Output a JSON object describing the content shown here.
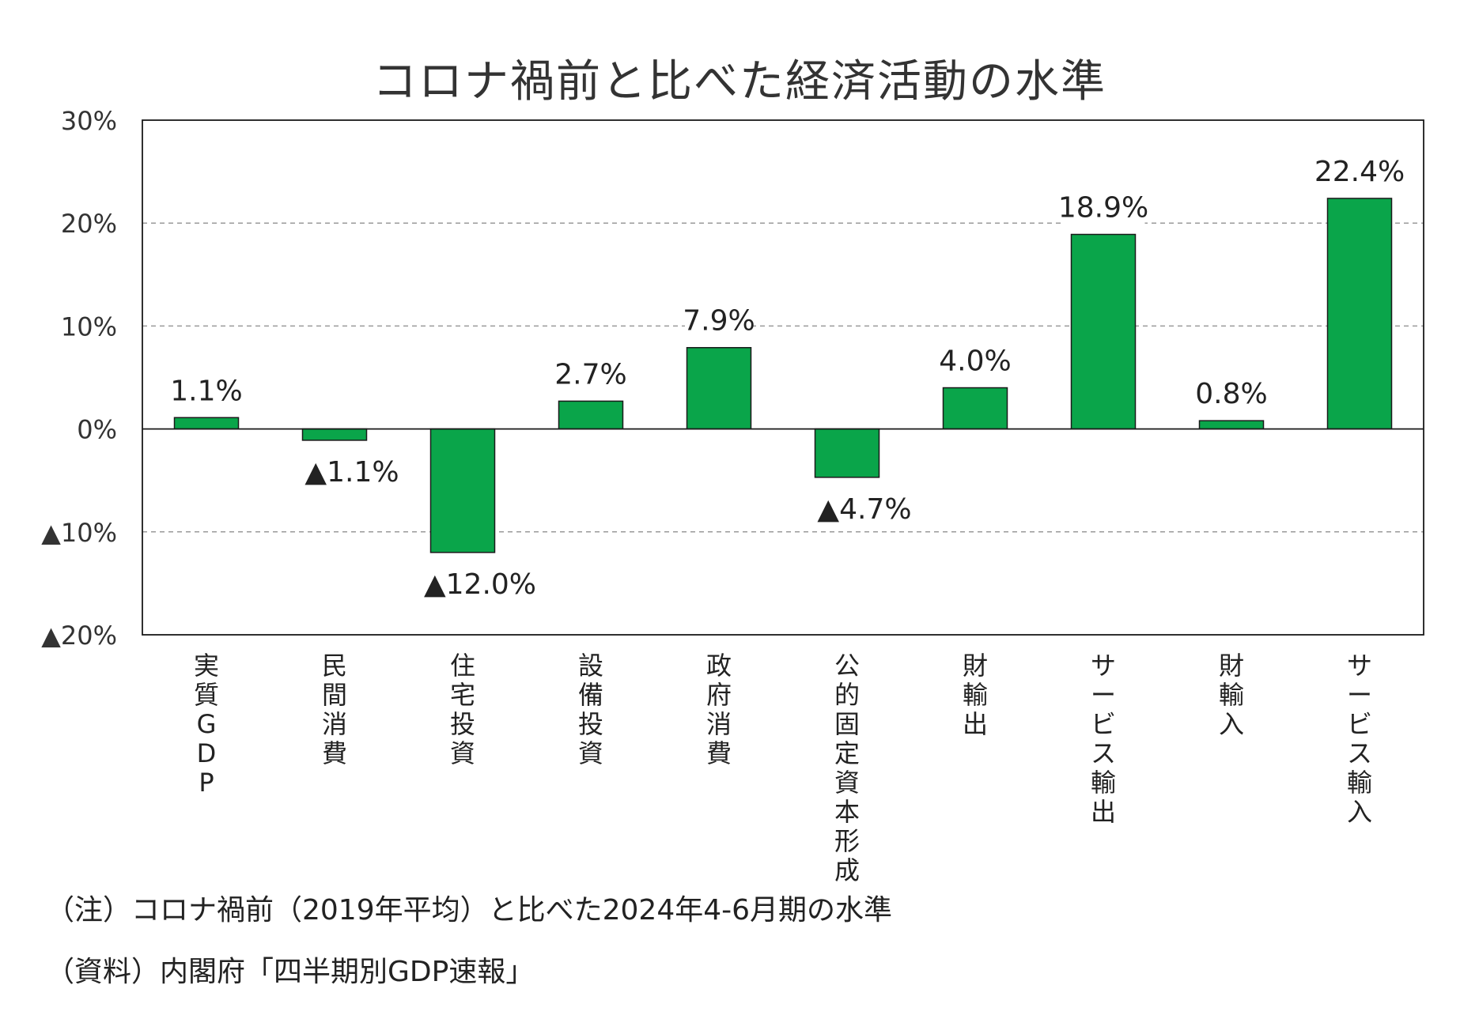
{
  "chart_data": {
    "type": "bar",
    "title": "コロナ禍前と比べた経済活動の水準",
    "categories": [
      "実質GDP",
      "民間消費",
      "住宅投資",
      "設備投資",
      "政府消費",
      "公的固定資本形成",
      "財輸出",
      "サービス輸出",
      "財輸入",
      "サービス輸入"
    ],
    "values": [
      1.1,
      -1.1,
      -12.0,
      2.7,
      7.9,
      -4.7,
      4.0,
      18.9,
      0.8,
      22.4
    ],
    "data_labels": [
      "1.1%",
      "▲1.1%",
      "▲12.0%",
      "2.7%",
      "7.9%",
      "▲4.7%",
      "4.0%",
      "18.9%",
      "0.8%",
      "22.4%"
    ],
    "ylim": [
      -20,
      30
    ],
    "yticks": [
      30,
      20,
      10,
      0,
      -10,
      -20
    ],
    "ytick_labels": [
      "30%",
      "20%",
      "10%",
      "0%",
      "▲10%",
      "▲20%"
    ],
    "xlabel": "",
    "ylabel": "",
    "grid": "dashed horizontal",
    "bar_color": "#0aa54a"
  },
  "notes": {
    "note": "（注）コロナ禍前（2019年平均）と比べた2024年4-6月期の水準",
    "source": "（資料）内閣府「四半期別GDP速報」"
  }
}
